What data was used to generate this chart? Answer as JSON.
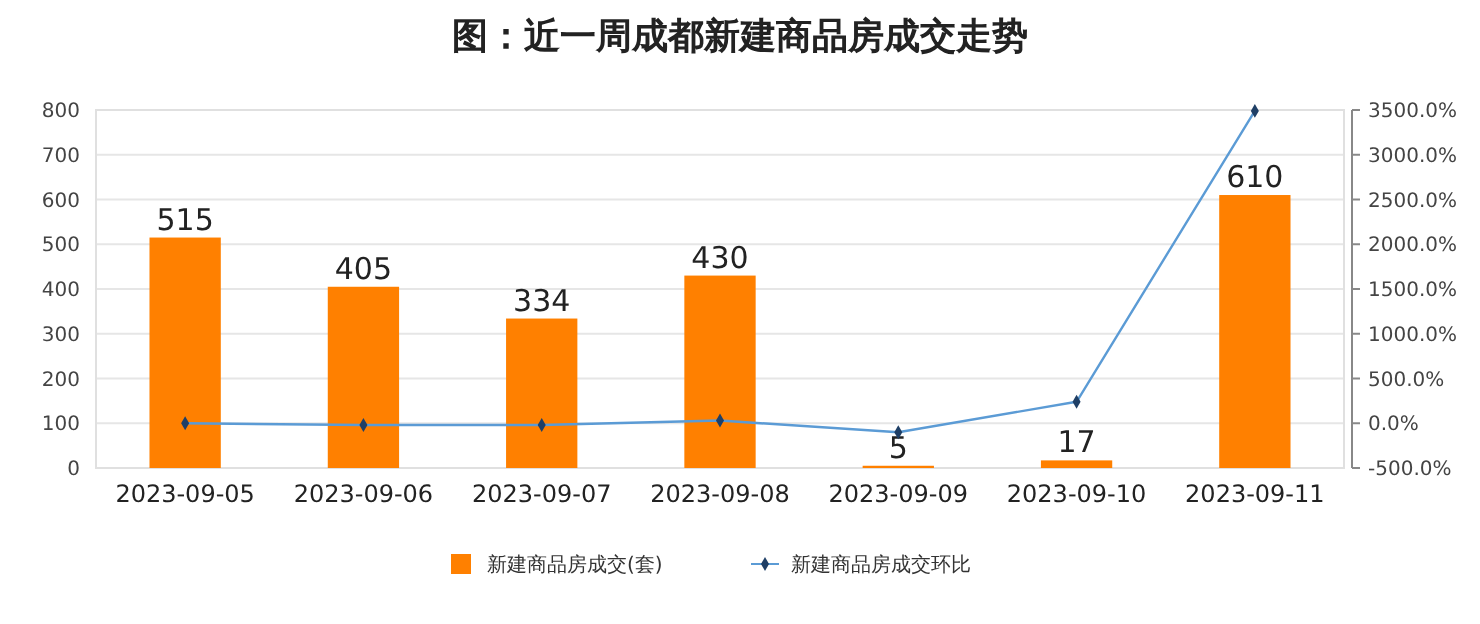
{
  "chart_data": {
    "type": "bar",
    "title": "图：近一周成都新建商品房成交走势",
    "categories": [
      "2023-09-05",
      "2023-09-06",
      "2023-09-07",
      "2023-09-08",
      "2023-09-09",
      "2023-09-10",
      "2023-09-11"
    ],
    "series": [
      {
        "name": "新建商品房成交(套)",
        "color": "#ff8000",
        "values": [
          515,
          405,
          334,
          430,
          5,
          17,
          610
        ],
        "value_labels": [
          "515",
          "405",
          "334",
          "430",
          "5",
          "17",
          "610"
        ]
      },
      {
        "name": "新建商品房成交环比",
        "type": "line",
        "axis": "y2",
        "color": "#5b9bd5",
        "marker": "diamond",
        "values": [
          0,
          -20,
          -20,
          30,
          -100,
          240,
          3490
        ]
      }
    ],
    "ylim": [
      0,
      800
    ],
    "yticks": [
      0,
      100,
      200,
      300,
      400,
      500,
      600,
      700,
      800
    ],
    "y2lim": [
      -500,
      3500
    ],
    "y2ticks": [
      {
        "value": -500,
        "label": "-500.0%"
      },
      {
        "value": 0,
        "label": "0.0%"
      },
      {
        "value": 500,
        "label": "500.0%"
      },
      {
        "value": 1000,
        "label": "1000.0%"
      },
      {
        "value": 1500,
        "label": "1500.0%"
      },
      {
        "value": 2000,
        "label": "2000.0%"
      },
      {
        "value": 2500,
        "label": "2500.0%"
      },
      {
        "value": 3000,
        "label": "3000.0%"
      },
      {
        "value": 3500,
        "label": "3500.0%"
      }
    ],
    "grid": "y",
    "legend": "bottom"
  }
}
